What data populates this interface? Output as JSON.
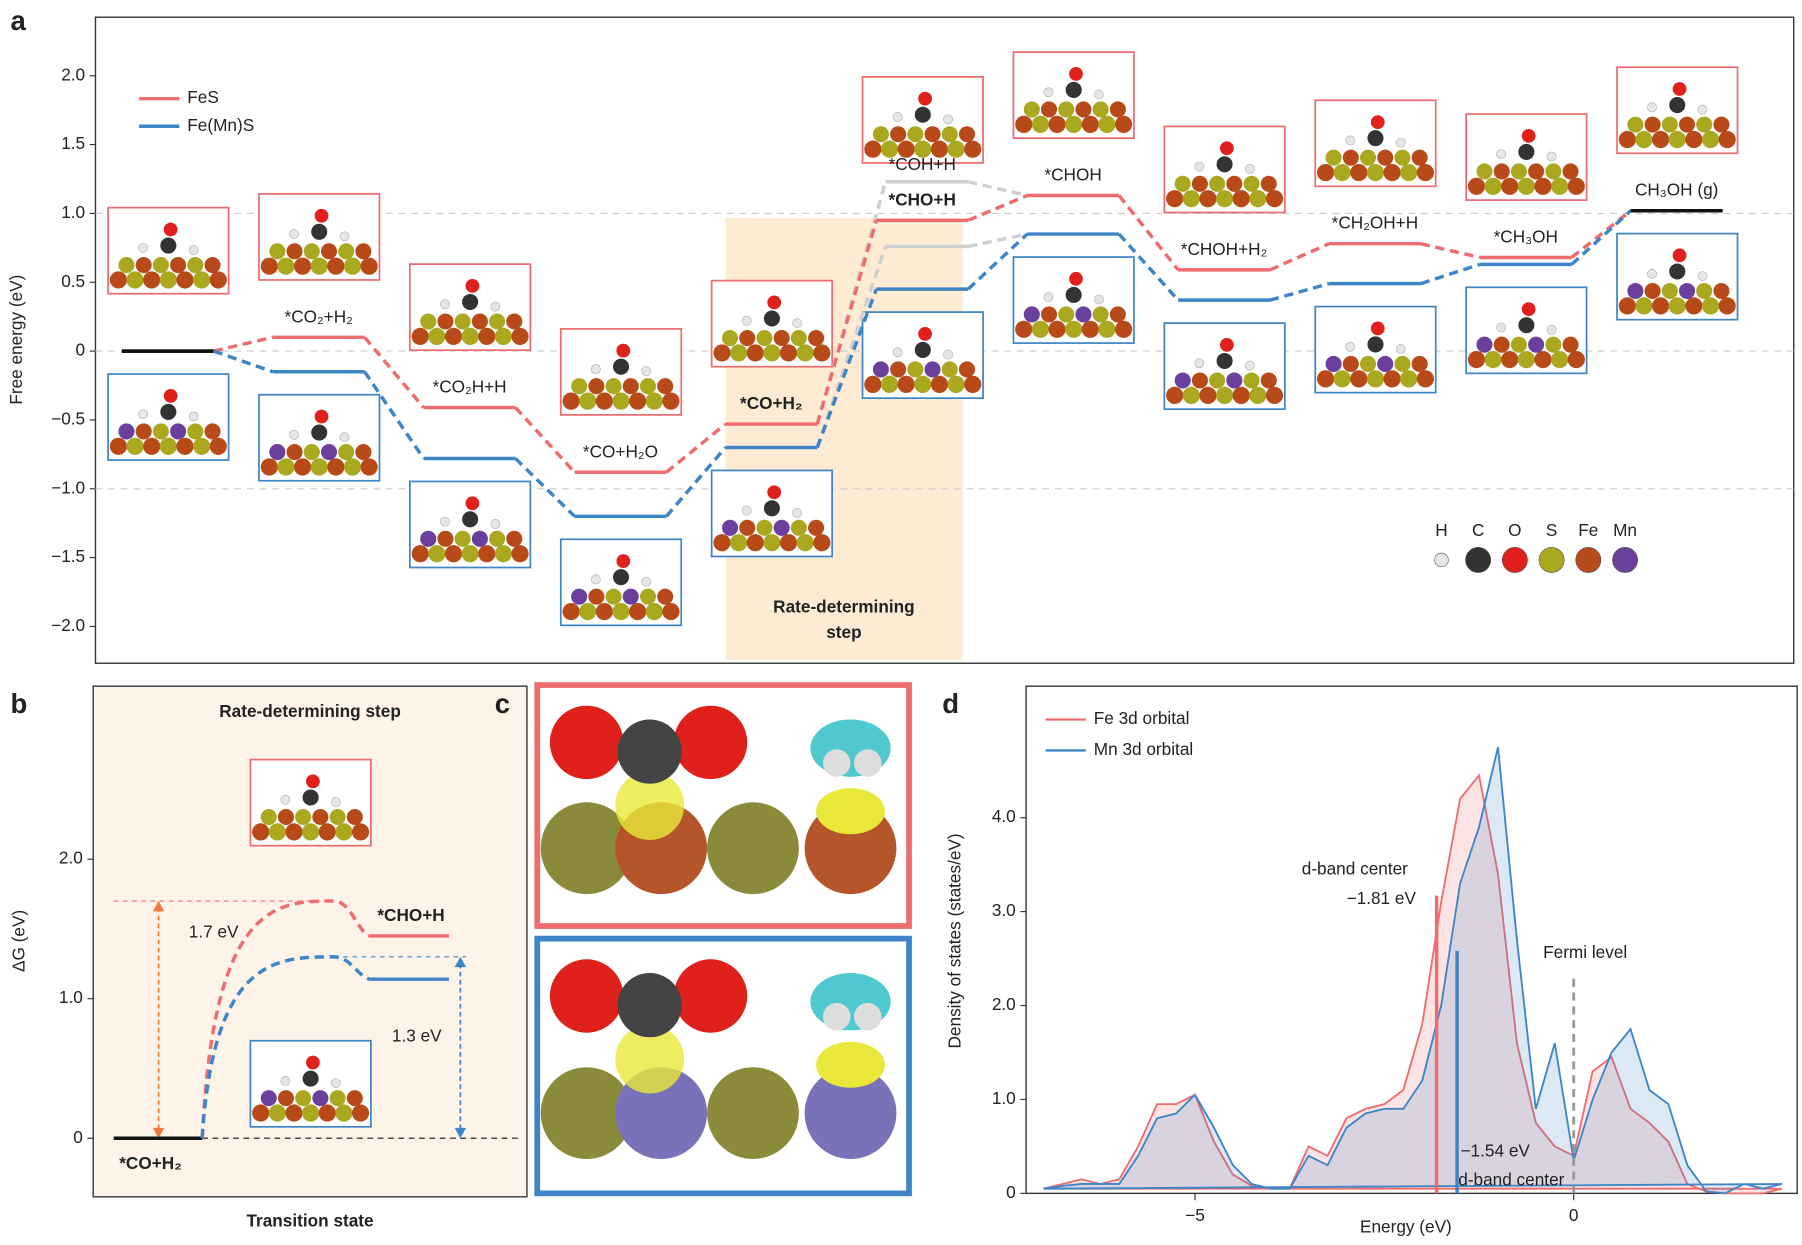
{
  "chart_data": [
    {
      "panel": "a",
      "type": "energy-profile",
      "ylabel": "Free energy (eV)",
      "categories": [
        null,
        "*CO₂+H₂",
        "*CO₂H+H",
        "*CO+H₂O",
        "*CO+H₂",
        "*CHO+H",
        "*CHOH",
        "*CHOH+H₂",
        "*CH₂OH+H",
        "*CH₃OH",
        "CH₃OH (g)"
      ],
      "series": [
        {
          "name": "FeS",
          "color": "#ee6b6e",
          "values": [
            0,
            0.1,
            -0.41,
            -0.88,
            -0.53,
            0.95,
            1.13,
            0.59,
            0.78,
            0.68,
            1.02
          ]
        },
        {
          "name": "Fe(Mn)S",
          "color": "#3d85c6",
          "values": [
            0,
            -0.15,
            -0.78,
            -1.2,
            -0.7,
            0.45,
            0.85,
            0.37,
            0.49,
            0.63,
            1.02
          ]
        }
      ],
      "common_color": "#111111",
      "alt_label": "*COH+H",
      "alt_color": "#cfcfcf",
      "alt_series": [
        {
          "values": [
            null,
            null,
            null,
            null,
            null,
            1.23,
            null,
            null,
            null,
            null,
            null
          ]
        },
        {
          "values": [
            null,
            null,
            null,
            null,
            null,
            0.76,
            null,
            null,
            null,
            null,
            null
          ]
        }
      ],
      "highlight_label": [
        "Rate-determining",
        "step"
      ],
      "highlight_color": "#fdebd3",
      "highlight_text_color": "#f08a3c",
      "elements": [
        {
          "label": "H",
          "color": "#e6e6e6"
        },
        {
          "label": "C",
          "color": "#333333"
        },
        {
          "label": "O",
          "color": "#e0201b"
        },
        {
          "label": "S",
          "color": "#a9a81e"
        },
        {
          "label": "Fe",
          "color": "#b84a1a"
        },
        {
          "label": "Mn",
          "color": "#6b3f9c"
        }
      ],
      "ylim": [
        -2.267,
        2.425
      ],
      "yticks": [
        {
          "value": -2,
          "label": "−2.0"
        },
        {
          "value": -1.5,
          "label": "−1.5"
        },
        {
          "value": -1,
          "label": "−1.0"
        },
        {
          "value": -0.5,
          "label": "−0.5"
        },
        0,
        0.5,
        {
          "value": 1,
          "label": "1.0"
        },
        1.5,
        {
          "value": 2,
          "label": "2.0"
        }
      ],
      "hlines": [
        -1,
        0,
        1
      ],
      "legend": "upper left"
    },
    {
      "panel": "b",
      "type": "reaction-barrier",
      "title": "Rate-determining step",
      "title_color": "#f0793a",
      "background": "#fdf3e8",
      "xlabel": "Transition state",
      "ylabel": "ΔG (eV)",
      "categories": [
        "*CO+H₂",
        null,
        "*CHO+H"
      ],
      "common_color": "#111111",
      "series": [
        {
          "color": "#ee6b6e",
          "values": [
            0,
            1.7,
            1.45
          ],
          "value_labels": [
            null,
            "1.7 eV",
            null
          ]
        },
        {
          "color": "#3d85c6",
          "values": [
            0,
            1.3,
            1.14
          ],
          "value_labels": [
            null,
            "1.3 eV",
            null
          ]
        }
      ],
      "ylim": [
        -0.42,
        3.24
      ],
      "yticks": [
        0,
        {
          "value": 1,
          "label": "1.0"
        },
        {
          "value": 2,
          "label": "2.0"
        }
      ]
    },
    {
      "panel": "c",
      "type": "charge-density",
      "frame_colors": [
        "#ee6b6e",
        "#3d85c6"
      ]
    },
    {
      "panel": "d",
      "type": "area",
      "xlabel": "Energy (eV)",
      "ylabel": "Density of states (states/eV)",
      "x": [
        -7,
        -6.75,
        -6.5,
        -6.25,
        -6,
        -5.75,
        -5.5,
        -5.25,
        -5,
        -4.75,
        -4.5,
        -4.25,
        -4,
        -3.75,
        -3.5,
        -3.25,
        -3,
        -2.75,
        -2.5,
        -2.25,
        -2,
        -1.75,
        -1.5,
        -1.25,
        -1,
        -0.75,
        -0.5,
        -0.25,
        0,
        0.25,
        0.5,
        0.75,
        1,
        1.25,
        1.5,
        1.75,
        2,
        2.25,
        2.5,
        2.75
      ],
      "series": [
        {
          "name": "Fe 3d orbital",
          "color": "#ee6b6e",
          "values": [
            0.05,
            0.1,
            0.15,
            0.1,
            0.15,
            0.5,
            0.95,
            0.95,
            1.05,
            0.55,
            0.2,
            0.08,
            0.05,
            0.05,
            0.5,
            0.4,
            0.8,
            0.9,
            0.95,
            1.1,
            1.8,
            3.1,
            4.2,
            4.45,
            3.4,
            1.6,
            0.75,
            0.5,
            0.4,
            1.3,
            1.45,
            0.9,
            0.75,
            0.55,
            0.1,
            0.02,
            0,
            0,
            0,
            0.05
          ]
        },
        {
          "name": "Mn 3d orbital",
          "color": "#3d85c6",
          "values": [
            0.05,
            0.08,
            0.1,
            0.1,
            0.1,
            0.4,
            0.8,
            0.85,
            1.05,
            0.7,
            0.3,
            0.1,
            0.05,
            0.05,
            0.4,
            0.3,
            0.7,
            0.85,
            0.9,
            0.9,
            1.2,
            2.0,
            3.3,
            3.9,
            4.75,
            2.7,
            0.9,
            1.6,
            0.35,
            1.0,
            1.5,
            1.75,
            1.1,
            0.95,
            0.3,
            0.02,
            0,
            0.1,
            0.05,
            0.1
          ]
        }
      ],
      "markers": [
        {
          "label": "d-band center",
          "x": -1.81,
          "x_label": "−1.81 eV",
          "height": 3.17,
          "color": "#ee6b6e"
        },
        {
          "label": "d-band center",
          "x": -1.54,
          "x_label": "−1.54 eV",
          "height": 2.58,
          "color": "#3d85c6"
        }
      ],
      "fermi": {
        "label": "Fermi level",
        "x": 0,
        "height": 2.31,
        "color": "#999999"
      },
      "xlim": [
        -7.23,
        2.95
      ],
      "xticks": [
        {
          "value": -5,
          "label": "−5"
        },
        0
      ],
      "ylim": [
        0,
        5.4
      ],
      "yticks": [
        0,
        {
          "value": 1,
          "label": "1.0"
        },
        {
          "value": 2,
          "label": "2.0"
        },
        {
          "value": 3,
          "label": "3.0"
        },
        {
          "value": 4,
          "label": "4.0"
        }
      ],
      "legend": "upper left"
    }
  ]
}
